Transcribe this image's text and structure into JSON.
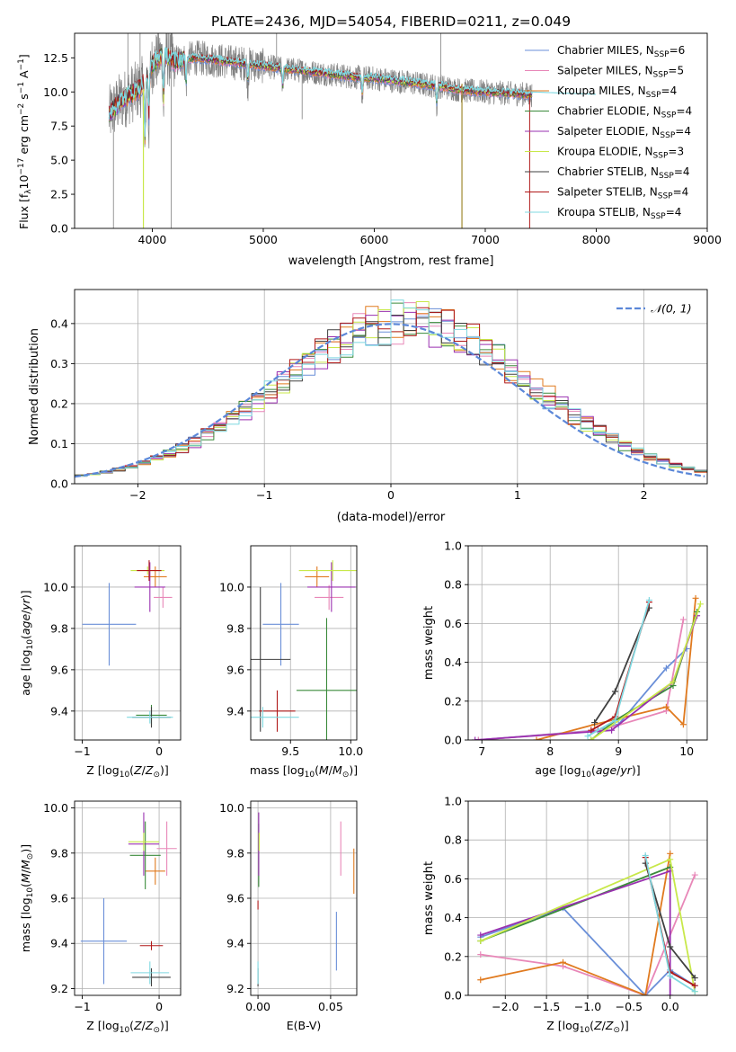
{
  "figure": {
    "title": "PLATE=2436, MJD=54054, FIBERID=0211, z=0.049"
  },
  "colors": {
    "Chabrier MILES": "#6a8fd8",
    "Salpeter MILES": "#e887b8",
    "Kroupa MILES": "#e07a1f",
    "Chabrier ELODIE": "#3a8a3a",
    "Salpeter ELODIE": "#9a30b0",
    "Kroupa ELODIE": "#c8e84a",
    "Chabrier STELIB": "#404040",
    "Salpeter STELIB": "#b01818",
    "Kroupa STELIB": "#7fd8e0",
    "data_gray": "#808080",
    "normal_curve": "#5b87d8",
    "grid": "#b0b0b0"
  },
  "chart_data": [
    {
      "type": "line",
      "title": "PLATE=2436, MJD=54054, FIBERID=0211, z=0.049",
      "xlabel": "wavelength [Angstrom, rest frame]",
      "ylabel": "Flux [f",
      "xlim": [
        3300,
        9000
      ],
      "ylim": [
        0,
        14.3
      ],
      "xticks": [
        "4000",
        "5000",
        "6000",
        "7000",
        "8000",
        "9000"
      ],
      "yticks": [
        "0.0",
        "2.5",
        "5.0",
        "7.5",
        "10.0",
        "12.5"
      ],
      "legend_position": "upper-right",
      "series": [
        {
          "name": "Chabrier MILES",
          "nssp": "6"
        },
        {
          "name": "Salpeter MILES",
          "nssp": "5"
        },
        {
          "name": "Kroupa MILES",
          "nssp": "4"
        },
        {
          "name": "Chabrier ELODIE",
          "nssp": "4"
        },
        {
          "name": "Salpeter ELODIE",
          "nssp": "4"
        },
        {
          "name": "Kroupa ELODIE",
          "nssp": "3"
        },
        {
          "name": "Chabrier STELIB",
          "nssp": "4"
        },
        {
          "name": "Salpeter STELIB",
          "nssp": "4"
        },
        {
          "name": "Kroupa STELIB",
          "nssp": "4"
        }
      ],
      "data_continuum": {
        "x": [
          3600,
          3700,
          3800,
          3900,
          4000,
          4100,
          4200,
          4400,
          4600,
          4800,
          5000,
          5200,
          5400,
          5600,
          5800,
          6000,
          6200,
          6400,
          6600,
          6800,
          7000,
          7200,
          7400
        ],
        "y": [
          8.2,
          9.2,
          9.8,
          10.3,
          12.0,
          12.8,
          12.2,
          12.5,
          12.3,
          12.1,
          11.9,
          11.7,
          11.5,
          11.3,
          11.1,
          11.0,
          10.8,
          10.6,
          10.4,
          10.1,
          10.0,
          9.9,
          9.8
        ]
      }
    },
    {
      "type": "step",
      "xlabel": "(data-model)/error",
      "ylabel": "Normed distribution",
      "xlim": [
        -2.5,
        2.5
      ],
      "ylim": [
        0,
        0.485
      ],
      "xticks": [
        "−2",
        "−1",
        "0",
        "1",
        "2"
      ],
      "yticks": [
        "0.0",
        "0.1",
        "0.2",
        "0.3",
        "0.4"
      ],
      "legend_position": "upper-right",
      "normal_label": "𝒩(0, 1)",
      "bin_width": 0.1
    },
    {
      "type": "scatter",
      "xlabel": "Z [log",
      "ylabel": "age  [log",
      "xlim": [
        -1.1,
        0.28
      ],
      "ylim": [
        9.26,
        10.2
      ],
      "xticks": [
        "−1",
        "0"
      ],
      "yticks": [
        "9.4",
        "9.6",
        "9.8",
        "10.0"
      ],
      "points": [
        {
          "model": "Chabrier MILES",
          "x": -0.65,
          "y": 9.82,
          "xerr": 0.35,
          "yerr": 0.2
        },
        {
          "model": "Salpeter MILES",
          "x": 0.05,
          "y": 9.95,
          "xerr": 0.12,
          "yerr": 0.05
        },
        {
          "model": "Kroupa MILES",
          "x": -0.05,
          "y": 10.05,
          "xerr": 0.15,
          "yerr": 0.05
        },
        {
          "model": "Chabrier ELODIE",
          "x": -0.1,
          "y": 9.38,
          "xerr": 0.2,
          "yerr": 0.05
        },
        {
          "model": "Salpeter ELODIE",
          "x": -0.12,
          "y": 10.0,
          "xerr": 0.2,
          "yerr": 0.12
        },
        {
          "model": "Kroupa ELODIE",
          "x": -0.15,
          "y": 10.08,
          "xerr": 0.22,
          "yerr": 0.02
        },
        {
          "model": "Chabrier STELIB",
          "x": -0.1,
          "y": 9.37,
          "xerr": 0.25,
          "yerr": 0.05
        },
        {
          "model": "Salpeter STELIB",
          "x": -0.13,
          "y": 10.08,
          "xerr": 0.16,
          "yerr": 0.05
        },
        {
          "model": "Kroupa STELIB",
          "x": -0.12,
          "y": 9.37,
          "xerr": 0.3,
          "yerr": 0.03
        }
      ]
    },
    {
      "type": "scatter",
      "xlabel": "mass [log",
      "ylabel": "",
      "xlim": [
        9.17,
        10.05
      ],
      "ylim": [
        9.26,
        10.2
      ],
      "xticks": [
        "9.5",
        "10.0"
      ],
      "yticks": [
        "9.4",
        "9.6",
        "9.8",
        "10.0"
      ],
      "points": [
        {
          "model": "Chabrier MILES",
          "x": 9.42,
          "y": 9.82,
          "xerr": 0.15,
          "yerr": 0.2
        },
        {
          "model": "Salpeter MILES",
          "x": 9.82,
          "y": 9.95,
          "xerr": 0.12,
          "yerr": 0.06
        },
        {
          "model": "Kroupa MILES",
          "x": 9.72,
          "y": 10.05,
          "xerr": 0.1,
          "yerr": 0.05
        },
        {
          "model": "Chabrier ELODIE",
          "x": 9.8,
          "y": 9.5,
          "xerr": 0.25,
          "yerr": 0.35
        },
        {
          "model": "Salpeter ELODIE",
          "x": 9.84,
          "y": 10.0,
          "xerr": 0.2,
          "yerr": 0.12
        },
        {
          "model": "Kroupa ELODIE",
          "x": 9.85,
          "y": 10.08,
          "xerr": 0.28,
          "yerr": 0.05
        },
        {
          "model": "Chabrier STELIB",
          "x": 9.25,
          "y": 9.65,
          "xerr": 0.25,
          "yerr": 0.35
        },
        {
          "model": "Salpeter STELIB",
          "x": 9.39,
          "y": 9.4,
          "xerr": 0.15,
          "yerr": 0.1
        },
        {
          "model": "Kroupa STELIB",
          "x": 9.27,
          "y": 9.37,
          "xerr": 0.3,
          "yerr": 0.05
        }
      ]
    },
    {
      "type": "line",
      "xlabel": "age  [log",
      "ylabel": "mass weight",
      "xlim": [
        6.8,
        10.3
      ],
      "ylim": [
        0,
        1.0
      ],
      "xticks": [
        "7",
        "8",
        "9",
        "10"
      ],
      "yticks": [
        "0.0",
        "0.2",
        "0.4",
        "0.6",
        "0.8",
        "1.0"
      ],
      "series": [
        {
          "name": "Chabrier MILES",
          "x": [
            6.95,
            8.7,
            9.0,
            9.7,
            10.0
          ],
          "y": [
            0.0,
            0.05,
            0.08,
            0.37,
            0.47
          ]
        },
        {
          "name": "Salpeter MILES",
          "x": [
            6.95,
            8.75,
            9.7,
            9.95
          ],
          "y": [
            0.0,
            0.05,
            0.15,
            0.62
          ]
        },
        {
          "name": "Kroupa MILES",
          "x": [
            7.8,
            8.65,
            9.7,
            9.95,
            10.13
          ],
          "y": [
            0.0,
            0.08,
            0.17,
            0.08,
            0.73
          ]
        },
        {
          "name": "Chabrier ELODIE",
          "x": [
            8.6,
            8.95,
            9.8,
            10.15
          ],
          "y": [
            0.0,
            0.1,
            0.28,
            0.66
          ]
        },
        {
          "name": "Salpeter ELODIE",
          "x": [
            6.9,
            8.9,
            9.8,
            10.15
          ],
          "y": [
            0.0,
            0.05,
            0.3,
            0.64
          ]
        },
        {
          "name": "Kroupa ELODIE",
          "x": [
            8.6,
            9.8,
            10.2
          ],
          "y": [
            0.0,
            0.3,
            0.7
          ]
        },
        {
          "name": "Chabrier STELIB",
          "x": [
            8.65,
            8.95,
            9.45
          ],
          "y": [
            0.09,
            0.25,
            0.68
          ]
        },
        {
          "name": "Salpeter STELIB",
          "x": [
            8.6,
            8.95,
            9.45
          ],
          "y": [
            0.05,
            0.12,
            0.71
          ]
        },
        {
          "name": "Kroupa STELIB",
          "x": [
            8.55,
            8.95,
            9.45
          ],
          "y": [
            0.02,
            0.1,
            0.72
          ]
        }
      ]
    },
    {
      "type": "scatter",
      "xlabel": "Z [log",
      "ylabel": "mass [log",
      "xlim": [
        -1.1,
        0.28
      ],
      "ylim": [
        9.17,
        10.03
      ],
      "xticks": [
        "−1",
        "0"
      ],
      "yticks": [
        "9.2",
        "9.4",
        "9.6",
        "9.8",
        "10.0"
      ],
      "points": [
        {
          "model": "Chabrier MILES",
          "x": -0.72,
          "y": 9.41,
          "xerr": 0.3,
          "yerr": 0.19
        },
        {
          "model": "Salpeter MILES",
          "x": 0.1,
          "y": 9.82,
          "xerr": 0.13,
          "yerr": 0.12
        },
        {
          "model": "Kroupa MILES",
          "x": -0.05,
          "y": 9.72,
          "xerr": 0.13,
          "yerr": 0.06
        },
        {
          "model": "Chabrier ELODIE",
          "x": -0.18,
          "y": 9.79,
          "xerr": 0.2,
          "yerr": 0.15
        },
        {
          "model": "Salpeter ELODIE",
          "x": -0.2,
          "y": 9.84,
          "xerr": 0.2,
          "yerr": 0.14
        },
        {
          "model": "Kroupa ELODIE",
          "x": -0.2,
          "y": 9.85,
          "xerr": 0.2,
          "yerr": 0.04
        },
        {
          "model": "Chabrier STELIB",
          "x": -0.1,
          "y": 9.25,
          "xerr": 0.25,
          "yerr": 0.04
        },
        {
          "model": "Salpeter STELIB",
          "x": -0.1,
          "y": 9.39,
          "xerr": 0.15,
          "yerr": 0.02
        },
        {
          "model": "Kroupa STELIB",
          "x": -0.12,
          "y": 9.27,
          "xerr": 0.25,
          "yerr": 0.05
        }
      ]
    },
    {
      "type": "scatter",
      "xlabel": "E(B-V)",
      "ylabel": "",
      "xlim": [
        -0.005,
        0.068
      ],
      "ylim": [
        9.17,
        10.03
      ],
      "xticks": [
        "0.00",
        "0.05"
      ],
      "yticks": [
        "9.2",
        "9.4",
        "9.6",
        "9.8",
        "10.0"
      ],
      "points": [
        {
          "model": "Chabrier MILES",
          "x": 0.054,
          "y": 9.41,
          "yerr": 0.13
        },
        {
          "model": "Salpeter MILES",
          "x": 0.057,
          "y": 9.82,
          "yerr": 0.12
        },
        {
          "model": "Kroupa MILES",
          "x": 0.066,
          "y": 9.72,
          "yerr": 0.1
        },
        {
          "model": "Chabrier ELODIE",
          "x": 0.0005,
          "y": 9.79,
          "yerr": 0.14
        },
        {
          "model": "Salpeter ELODIE",
          "x": 0.0005,
          "y": 9.84,
          "yerr": 0.14
        },
        {
          "model": "Kroupa ELODIE",
          "x": 0.0008,
          "y": 9.85,
          "yerr": 0.04
        },
        {
          "model": "Chabrier STELIB",
          "x": 0.0,
          "y": 9.25,
          "yerr": 0.04
        },
        {
          "model": "Salpeter STELIB",
          "x": 0.0,
          "y": 9.57,
          "yerr": 0.02
        },
        {
          "model": "Kroupa STELIB",
          "x": 0.0,
          "y": 9.27,
          "yerr": 0.05
        }
      ]
    },
    {
      "type": "line",
      "xlabel": "Z [log",
      "ylabel": "mass weight",
      "xlim": [
        -2.45,
        0.45
      ],
      "ylim": [
        0,
        1.0
      ],
      "xticks": [
        "−2.0",
        "−1.5",
        "−1.0",
        "−0.5",
        "0.0"
      ],
      "yticks": [
        "0.0",
        "0.2",
        "0.4",
        "0.6",
        "0.8",
        "1.0"
      ],
      "series": [
        {
          "name": "Chabrier MILES",
          "x": [
            -2.3,
            -1.3,
            -0.3,
            0.0,
            0.3
          ],
          "y": [
            0.3,
            0.45,
            0.0,
            0.13,
            0.05
          ]
        },
        {
          "name": "Salpeter MILES",
          "x": [
            -2.3,
            -1.3,
            -0.3,
            0.3
          ],
          "y": [
            0.21,
            0.15,
            0.0,
            0.62
          ]
        },
        {
          "name": "Kroupa MILES",
          "x": [
            -2.3,
            -1.3,
            -0.3,
            0.0
          ],
          "y": [
            0.08,
            0.17,
            0.0,
            0.73
          ]
        },
        {
          "name": "Chabrier ELODIE",
          "x": [
            -2.3,
            0.0
          ],
          "y": [
            0.28,
            0.66
          ]
        },
        {
          "name": "Salpeter ELODIE",
          "x": [
            -2.3,
            0.0,
            0.0
          ],
          "y": [
            0.31,
            0.64,
            0.0
          ]
        },
        {
          "name": "Kroupa ELODIE",
          "x": [
            -2.3,
            0.0,
            0.3
          ],
          "y": [
            0.28,
            0.7,
            0.02
          ]
        },
        {
          "name": "Chabrier STELIB",
          "x": [
            -0.3,
            0.0,
            0.3
          ],
          "y": [
            0.68,
            0.25,
            0.09
          ]
        },
        {
          "name": "Salpeter STELIB",
          "x": [
            -0.3,
            0.0,
            0.3
          ],
          "y": [
            0.71,
            0.12,
            0.05
          ]
        },
        {
          "name": "Kroupa STELIB",
          "x": [
            -0.3,
            0.0,
            0.3
          ],
          "y": [
            0.72,
            0.1,
            0.02
          ]
        }
      ]
    }
  ]
}
